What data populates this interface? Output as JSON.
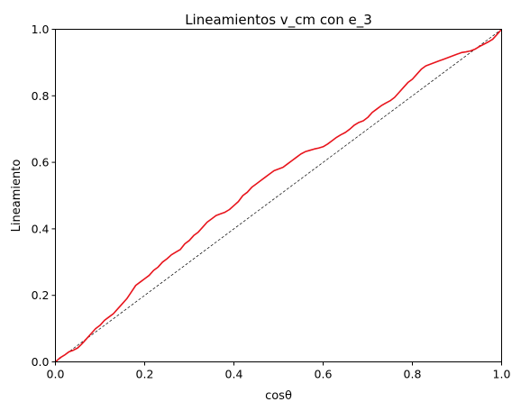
{
  "chart_data": {
    "type": "line",
    "title": "Lineamientos v_cm con e_3",
    "xlabel": "cosθ",
    "ylabel": "Lineamiento",
    "xlim": [
      0,
      1
    ],
    "ylim": [
      0,
      1
    ],
    "x_ticks": [
      "0.0",
      "0.2",
      "0.4",
      "0.6",
      "0.8",
      "1.0"
    ],
    "y_ticks": [
      "0.0",
      "0.2",
      "0.4",
      "0.6",
      "0.8",
      "1.0"
    ],
    "grid": false,
    "legend": "none",
    "series": [
      {
        "color": "#e8141c",
        "style": "solid",
        "x": [
          0.0,
          0.01,
          0.02,
          0.03,
          0.04,
          0.05,
          0.06,
          0.07,
          0.08,
          0.09,
          0.1,
          0.11,
          0.12,
          0.13,
          0.14,
          0.15,
          0.16,
          0.17,
          0.18,
          0.19,
          0.2,
          0.21,
          0.22,
          0.23,
          0.24,
          0.25,
          0.26,
          0.27,
          0.28,
          0.29,
          0.3,
          0.31,
          0.32,
          0.33,
          0.34,
          0.35,
          0.36,
          0.37,
          0.38,
          0.39,
          0.4,
          0.41,
          0.42,
          0.43,
          0.44,
          0.45,
          0.46,
          0.47,
          0.48,
          0.49,
          0.5,
          0.51,
          0.52,
          0.53,
          0.54,
          0.55,
          0.56,
          0.57,
          0.58,
          0.59,
          0.6,
          0.61,
          0.62,
          0.63,
          0.64,
          0.65,
          0.66,
          0.67,
          0.68,
          0.69,
          0.7,
          0.71,
          0.72,
          0.73,
          0.74,
          0.75,
          0.76,
          0.77,
          0.78,
          0.79,
          0.8,
          0.81,
          0.82,
          0.83,
          0.84,
          0.85,
          0.86,
          0.87,
          0.88,
          0.89,
          0.9,
          0.91,
          0.92,
          0.93,
          0.94,
          0.95,
          0.96,
          0.97,
          0.98,
          0.99,
          1.0
        ],
        "y": [
          0.0,
          0.012,
          0.02,
          0.03,
          0.035,
          0.042,
          0.055,
          0.07,
          0.085,
          0.1,
          0.11,
          0.125,
          0.135,
          0.145,
          0.16,
          0.175,
          0.19,
          0.21,
          0.23,
          0.24,
          0.25,
          0.26,
          0.275,
          0.285,
          0.3,
          0.31,
          0.322,
          0.33,
          0.338,
          0.355,
          0.365,
          0.38,
          0.39,
          0.405,
          0.42,
          0.43,
          0.44,
          0.445,
          0.45,
          0.458,
          0.47,
          0.482,
          0.5,
          0.51,
          0.525,
          0.535,
          0.545,
          0.555,
          0.565,
          0.575,
          0.58,
          0.585,
          0.595,
          0.605,
          0.615,
          0.625,
          0.632,
          0.636,
          0.64,
          0.643,
          0.647,
          0.655,
          0.665,
          0.675,
          0.683,
          0.69,
          0.7,
          0.712,
          0.72,
          0.725,
          0.735,
          0.75,
          0.76,
          0.77,
          0.778,
          0.785,
          0.795,
          0.81,
          0.825,
          0.84,
          0.85,
          0.865,
          0.88,
          0.89,
          0.895,
          0.9,
          0.905,
          0.91,
          0.915,
          0.92,
          0.925,
          0.93,
          0.932,
          0.935,
          0.94,
          0.948,
          0.955,
          0.962,
          0.97,
          0.985,
          1.0
        ]
      },
      {
        "color": "#000000",
        "style": "dashed",
        "x": [
          0,
          1
        ],
        "y": [
          0,
          1
        ]
      }
    ]
  }
}
